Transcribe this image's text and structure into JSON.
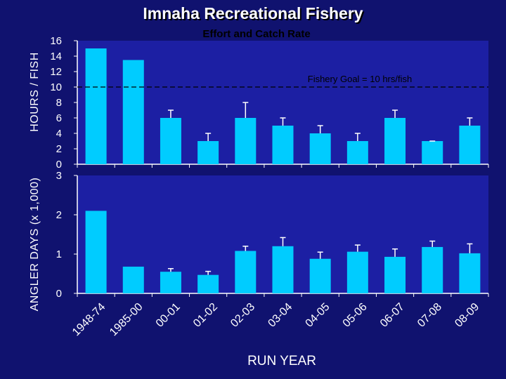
{
  "title": "Imnaha Recreational Fishery",
  "subtitle": "Effort and Catch Rate",
  "colors": {
    "background": "#10126f",
    "plot_area": "#1c1fa3",
    "bar": "#00ccff",
    "axis": "#ffffff",
    "text": "#ffffff",
    "annotation_text": "#000000",
    "goal_line": "#000000"
  },
  "chart_data": {
    "type": "bar",
    "xlabel": "RUN YEAR",
    "categories": [
      "1948-74",
      "1985-00",
      "00-01",
      "01-02",
      "02-03",
      "03-04",
      "04-05",
      "05-06",
      "06-07",
      "07-08",
      "08-09"
    ],
    "panels": [
      {
        "id": "hours_per_fish",
        "ylabel": "HOURS / FISH",
        "ylim": [
          0,
          16
        ],
        "yticks": [
          0,
          2,
          4,
          6,
          8,
          10,
          12,
          14,
          16
        ],
        "values": [
          15,
          13.5,
          6,
          3,
          6,
          5,
          4,
          3,
          6,
          3,
          5
        ],
        "error_upper": [
          null,
          null,
          7,
          4,
          8,
          6,
          5,
          4,
          7,
          3,
          6
        ],
        "reference_line": {
          "value": 10,
          "label": "Fishery Goal = 10 hrs/fish",
          "style": "dashed"
        }
      },
      {
        "id": "angler_days",
        "ylabel": "ANGLER DAYS (x 1,000)",
        "ylim": [
          0,
          3
        ],
        "yticks": [
          0,
          1,
          2,
          3
        ],
        "values": [
          2.1,
          0.68,
          0.55,
          0.47,
          1.08,
          1.2,
          0.88,
          1.06,
          0.93,
          1.18,
          1.02
        ],
        "error_upper": [
          null,
          null,
          0.63,
          0.56,
          1.2,
          1.42,
          1.05,
          1.23,
          1.13,
          1.33,
          1.26
        ]
      }
    ]
  }
}
